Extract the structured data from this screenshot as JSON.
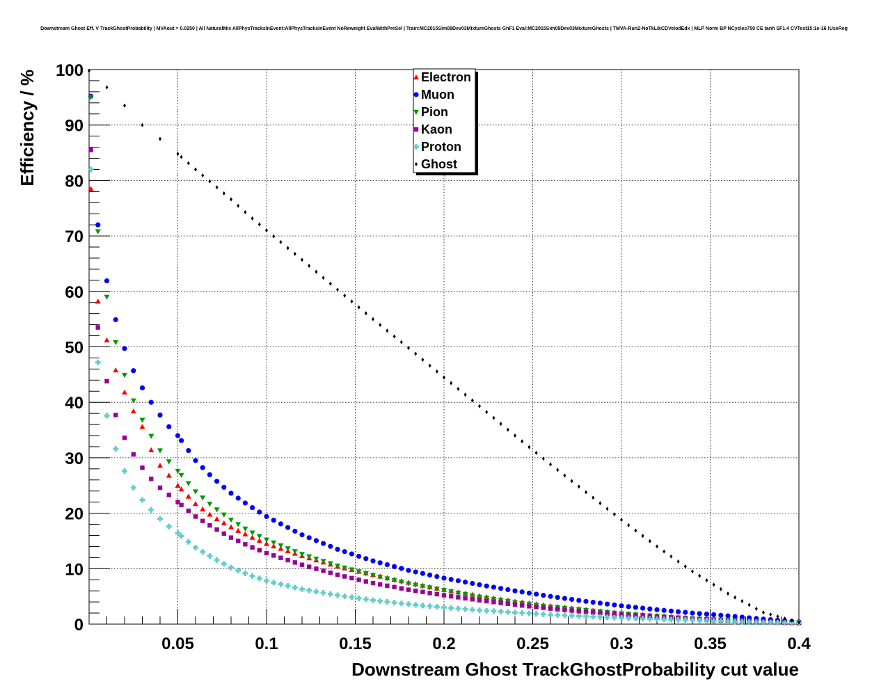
{
  "chart_data": {
    "type": "scatter",
    "title": "Downstream Ghost Eff. V TrackGhostProbability | MVAout > 0.0250 | All NaturalMix AllPhysTracksInEvent:AllPhysTracksInEvent NoReweight EvalWithPreSel | Train:MC2015Sim09Dev03MixtureGhosts GhF1 Eval:MC2015Sim09Dev03MixtureGhosts | TMVA-Run2-NoTkLikCDVelodEdx | MLP Norm BP NCycles750 CE tanh SF1.4 CVTest15:1e-16 !UseReg",
    "xlabel": "Downstream Ghost TrackGhostProbability cut value",
    "ylabel": "Efficiency / %",
    "xlim": [
      0,
      0.4
    ],
    "ylim": [
      0,
      100
    ],
    "x_ticks": [
      "0.05",
      "0.1",
      "0.15",
      "0.2",
      "0.25",
      "0.3",
      "0.35",
      "0.4"
    ],
    "y_ticks": [
      "0",
      "10",
      "20",
      "30",
      "40",
      "50",
      "60",
      "70",
      "80",
      "90",
      "100"
    ],
    "grid": true,
    "legend_position": "top-center",
    "series": [
      {
        "name": "Electron",
        "color": "#ff0000",
        "marker": "triangle-up",
        "x": [
          0.001,
          0.005,
          0.01,
          0.015,
          0.02,
          0.025,
          0.03,
          0.035,
          0.04,
          0.045,
          0.05,
          0.06,
          0.07,
          0.08,
          0.09,
          0.1,
          0.12,
          0.14,
          0.16,
          0.18,
          0.2,
          0.22,
          0.24,
          0.26,
          0.28,
          0.3,
          0.32,
          0.34,
          0.36,
          0.38,
          0.4
        ],
        "y": [
          78.5,
          58.2,
          51.2,
          45.8,
          41.8,
          38.4,
          35.6,
          31.4,
          28.6,
          26.8,
          25.0,
          21.7,
          19.3,
          17.5,
          15.9,
          14.5,
          12.3,
          10.4,
          8.9,
          7.5,
          6.2,
          5.1,
          4.1,
          3.3,
          2.6,
          2.0,
          1.5,
          1.1,
          0.8,
          0.5,
          0.3
        ]
      },
      {
        "name": "Muon",
        "color": "#0000ff",
        "marker": "circle",
        "x": [
          0.001,
          0.005,
          0.01,
          0.015,
          0.02,
          0.025,
          0.03,
          0.035,
          0.04,
          0.045,
          0.05,
          0.06,
          0.07,
          0.08,
          0.09,
          0.1,
          0.12,
          0.14,
          0.16,
          0.18,
          0.2,
          0.22,
          0.24,
          0.26,
          0.28,
          0.3,
          0.32,
          0.34,
          0.36,
          0.38,
          0.4
        ],
        "y": [
          95.2,
          72.0,
          61.9,
          54.9,
          49.7,
          45.7,
          42.6,
          40.0,
          37.7,
          35.6,
          34.0,
          29.5,
          26.3,
          23.6,
          21.4,
          19.4,
          16.1,
          13.5,
          11.4,
          9.7,
          8.3,
          7.1,
          6.0,
          5.0,
          4.1,
          3.3,
          2.6,
          2.0,
          1.5,
          0.9,
          0.4
        ]
      },
      {
        "name": "Pion",
        "color": "#009900",
        "marker": "triangle-down",
        "x": [
          0.001,
          0.005,
          0.01,
          0.015,
          0.02,
          0.025,
          0.03,
          0.035,
          0.04,
          0.045,
          0.05,
          0.06,
          0.07,
          0.08,
          0.09,
          0.1,
          0.12,
          0.14,
          0.16,
          0.18,
          0.2,
          0.22,
          0.24,
          0.26,
          0.28,
          0.3,
          0.32,
          0.34,
          0.36,
          0.38,
          0.4
        ],
        "y": [
          95.0,
          70.8,
          59.0,
          50.8,
          44.9,
          40.3,
          36.8,
          33.9,
          31.3,
          29.3,
          27.6,
          23.9,
          21.1,
          18.8,
          16.8,
          15.2,
          12.6,
          10.5,
          8.8,
          7.3,
          6.1,
          4.9,
          3.9,
          3.1,
          2.5,
          1.9,
          1.4,
          1.0,
          0.7,
          0.4,
          0.2
        ]
      },
      {
        "name": "Kaon",
        "color": "#990099",
        "marker": "square",
        "x": [
          0.001,
          0.005,
          0.01,
          0.015,
          0.02,
          0.025,
          0.03,
          0.035,
          0.04,
          0.045,
          0.05,
          0.06,
          0.07,
          0.08,
          0.09,
          0.1,
          0.12,
          0.14,
          0.16,
          0.18,
          0.2,
          0.22,
          0.24,
          0.26,
          0.28,
          0.3,
          0.32,
          0.34,
          0.36,
          0.38,
          0.4
        ],
        "y": [
          85.5,
          53.5,
          43.8,
          37.7,
          33.6,
          30.6,
          28.2,
          26.2,
          24.6,
          23.3,
          22.0,
          19.4,
          17.4,
          15.6,
          14.1,
          12.8,
          10.7,
          8.9,
          7.4,
          6.2,
          5.2,
          4.3,
          3.5,
          2.8,
          2.2,
          1.7,
          1.3,
          0.9,
          0.6,
          0.4,
          0.2
        ]
      },
      {
        "name": "Proton",
        "color": "#66cccc",
        "marker": "cross",
        "x": [
          0.001,
          0.005,
          0.01,
          0.015,
          0.02,
          0.025,
          0.03,
          0.035,
          0.04,
          0.045,
          0.05,
          0.06,
          0.07,
          0.08,
          0.09,
          0.1,
          0.12,
          0.14,
          0.16,
          0.18,
          0.2,
          0.22,
          0.24,
          0.26,
          0.28,
          0.3,
          0.32,
          0.34,
          0.36,
          0.38,
          0.4
        ],
        "y": [
          82.0,
          47.2,
          37.6,
          31.6,
          27.6,
          24.6,
          22.4,
          20.6,
          19.0,
          17.6,
          16.4,
          13.8,
          11.9,
          10.2,
          8.9,
          7.8,
          6.3,
          5.2,
          4.3,
          3.6,
          3.0,
          2.5,
          2.1,
          1.7,
          1.4,
          1.1,
          0.9,
          0.7,
          0.5,
          0.3,
          0.2
        ]
      },
      {
        "name": "Ghost",
        "color": "#000000",
        "marker": "diamond",
        "x": [
          0.0,
          0.01,
          0.02,
          0.03,
          0.04,
          0.05,
          0.06,
          0.07,
          0.08,
          0.09,
          0.1,
          0.12,
          0.14,
          0.16,
          0.18,
          0.2,
          0.22,
          0.24,
          0.26,
          0.28,
          0.3,
          0.32,
          0.34,
          0.36,
          0.38,
          0.4
        ],
        "y": [
          99.8,
          96.8,
          93.5,
          90.0,
          87.5,
          84.8,
          82.0,
          79.3,
          76.6,
          73.7,
          71.0,
          65.7,
          60.3,
          55.0,
          49.8,
          44.5,
          39.3,
          34.0,
          28.8,
          23.8,
          18.8,
          14.0,
          9.5,
          5.5,
          2.1,
          0.3
        ]
      }
    ]
  }
}
